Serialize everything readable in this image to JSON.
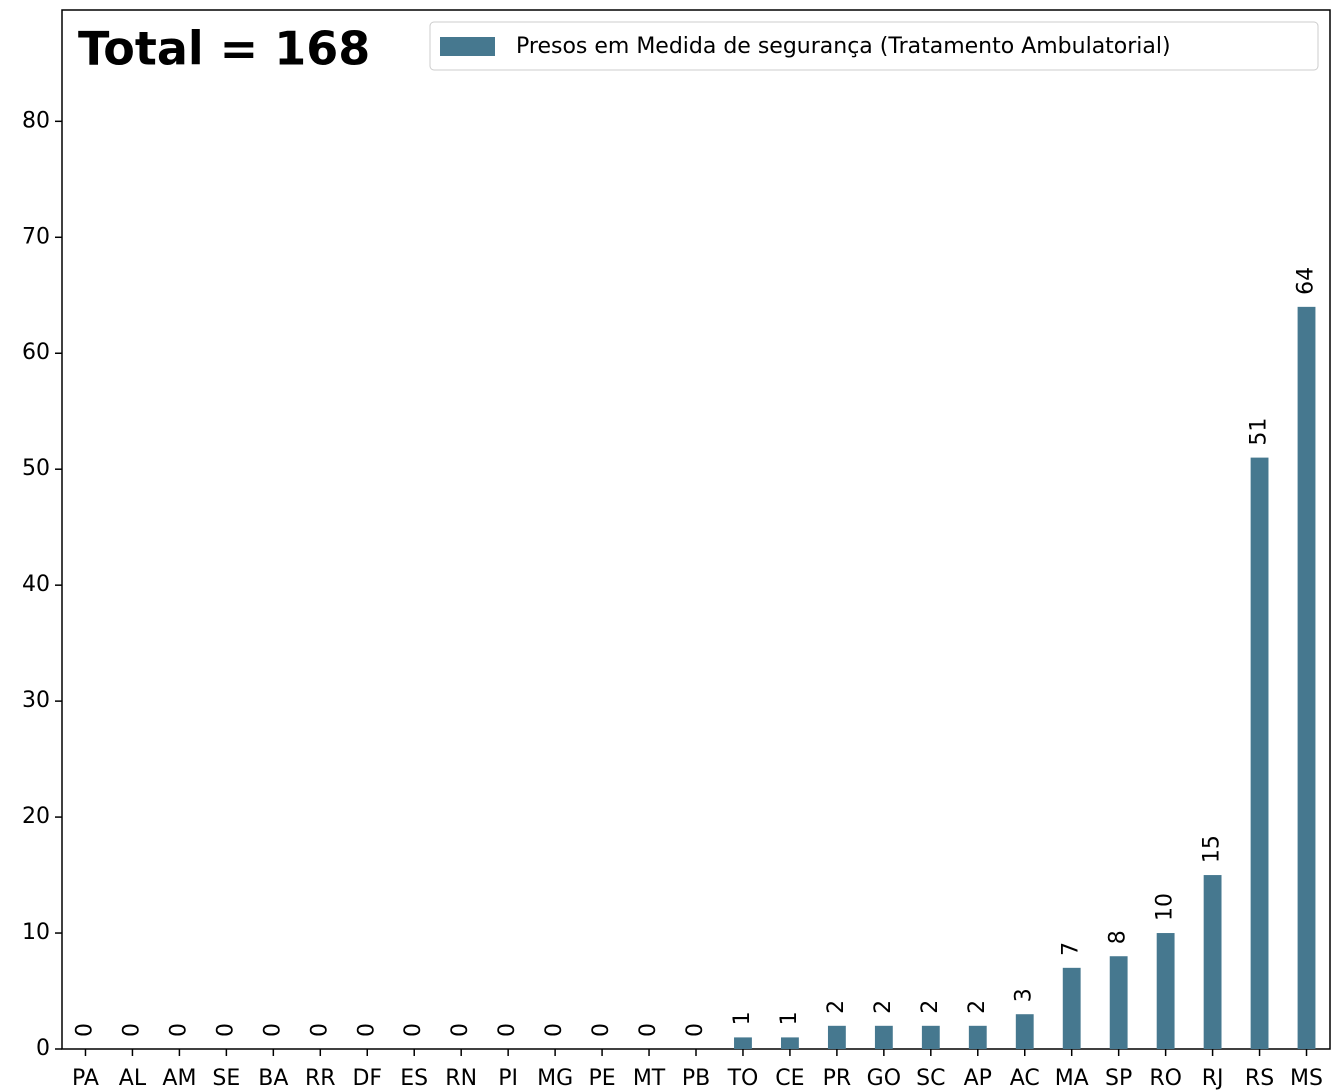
{
  "chart_data": {
    "type": "bar",
    "annotation": "Total = 168",
    "categories": [
      "PA",
      "AL",
      "AM",
      "SE",
      "BA",
      "RR",
      "DF",
      "ES",
      "RN",
      "PI",
      "MG",
      "PE",
      "MT",
      "PB",
      "TO",
      "CE",
      "PR",
      "GO",
      "SC",
      "AP",
      "AC",
      "MA",
      "SP",
      "RO",
      "RJ",
      "RS",
      "MS"
    ],
    "series": [
      {
        "name": "Presos em Medida de segurança (Tratamento Ambulatorial)",
        "color": "#46788f",
        "values": [
          0,
          0,
          0,
          0,
          0,
          0,
          0,
          0,
          0,
          0,
          0,
          0,
          0,
          0,
          1,
          1,
          2,
          2,
          2,
          2,
          3,
          7,
          8,
          10,
          15,
          51,
          64
        ]
      }
    ],
    "ylim": [
      0,
      89.6
    ],
    "yticks": [
      0,
      10,
      20,
      30,
      40,
      50,
      60,
      70,
      80
    ],
    "grid": false,
    "legend": "upper right"
  }
}
